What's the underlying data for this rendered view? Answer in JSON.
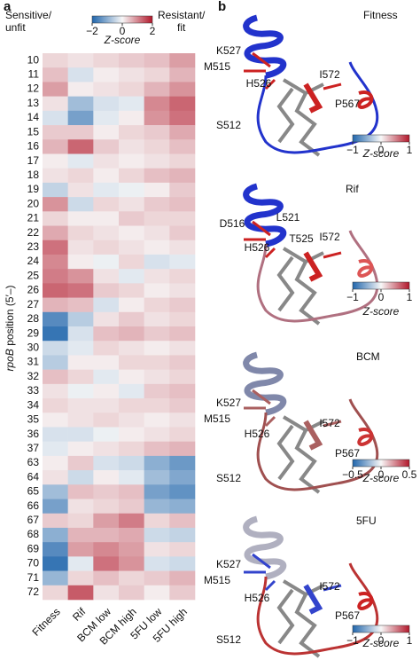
{
  "panel_a": {
    "label": "a",
    "legend": {
      "low": [
        "Sensitive/",
        "unfit"
      ],
      "high": [
        "Resistant/",
        "fit"
      ],
      "title": "Z-score",
      "lim": [
        -2,
        2
      ],
      "ticks": [
        {
          "value": -2,
          "label": "−2"
        },
        0,
        2
      ]
    },
    "y_label": [
      "rpoB",
      " position (5′–)"
    ],
    "chart_data": {
      "type": "heatmap",
      "rows": [
        "10",
        "11",
        "12",
        "13",
        "14",
        "15",
        "16",
        "17",
        "18",
        "19",
        "20",
        "21",
        "22",
        "23",
        "24",
        "25",
        "26",
        "27",
        "28",
        "29",
        "30",
        "31",
        "32",
        "33",
        "34",
        "35",
        "36",
        "37",
        "63",
        "64",
        "65",
        "66",
        "67",
        "68",
        "69",
        "70",
        "71",
        "72"
      ],
      "series": [
        {
          "name": "Fitness",
          "values": [
            0.3,
            0.5,
            0.8,
            0.2,
            -0.3,
            0.4,
            0.6,
            0.1,
            0.2,
            -0.5,
            0.9,
            0.3,
            0.7,
            1.2,
            1.0,
            1.1,
            1.3,
            0.6,
            -1.5,
            -1.8,
            -0.4,
            -0.6,
            0.5,
            0.2,
            0.3,
            0.1,
            -0.3,
            -0.2,
            0.1,
            0.2,
            -0.8,
            -1.2,
            0.4,
            -1.0,
            -1.5,
            -1.8,
            -0.9,
            0.3
          ]
        },
        {
          "name": "Rif",
          "values": [
            0.2,
            -0.3,
            0.1,
            -0.8,
            -1.2,
            0.4,
            1.3,
            -0.2,
            0.3,
            0.2,
            -0.4,
            0.1,
            0.3,
            0.2,
            0.1,
            0.9,
            1.2,
            0.5,
            -0.6,
            -0.3,
            -0.2,
            0.1,
            0.3,
            -0.1,
            0.2,
            0.2,
            -0.3,
            0.1,
            0.4,
            -0.4,
            0.5,
            0.2,
            0.3,
            0.6,
            0.8,
            -0.2,
            0.3,
            1.4
          ]
        },
        {
          "name": "BCM low",
          "values": [
            0.3,
            0.1,
            0.2,
            -0.3,
            -0.2,
            0.1,
            0.4,
            0.2,
            0.1,
            -0.2,
            0.3,
            0.1,
            0.2,
            0.3,
            -0.1,
            0.2,
            0.4,
            -0.3,
            0.2,
            0.5,
            0.3,
            0.1,
            -0.2,
            0.1,
            0.2,
            0.3,
            -0.1,
            0.2,
            -0.3,
            0.1,
            0.4,
            0.3,
            0.8,
            0.6,
            1.0,
            1.2,
            0.5,
            0.2
          ]
        },
        {
          "name": "BCM high",
          "values": [
            0.4,
            0.2,
            0.3,
            -0.2,
            0.1,
            0.3,
            0.2,
            0.1,
            0.3,
            -0.1,
            0.2,
            0.4,
            0.1,
            0.2,
            0.3,
            -0.2,
            0.3,
            0.1,
            0.4,
            0.6,
            0.2,
            0.3,
            0.1,
            -0.2,
            0.3,
            0.2,
            0.1,
            0.3,
            -0.4,
            -0.2,
            0.5,
            0.4,
            1.1,
            0.7,
            0.8,
            0.9,
            0.3,
            0.4
          ]
        },
        {
          "name": "5FU low",
          "values": [
            0.5,
            0.3,
            0.6,
            1.0,
            0.9,
            0.4,
            0.3,
            0.2,
            0.5,
            0.1,
            0.4,
            0.3,
            0.2,
            0.1,
            -0.3,
            0.2,
            0.1,
            0.3,
            0.2,
            0.4,
            0.1,
            0.3,
            0.2,
            0.4,
            0.3,
            0.1,
            0.2,
            0.5,
            -1.0,
            -0.8,
            -1.2,
            -0.9,
            0.3,
            -0.4,
            0.2,
            -0.3,
            0.4,
            0.1
          ]
        },
        {
          "name": "5FU high",
          "values": [
            0.8,
            0.6,
            0.9,
            1.3,
            1.2,
            0.7,
            0.5,
            0.3,
            0.6,
            0.4,
            0.5,
            0.3,
            0.4,
            0.2,
            -0.2,
            0.3,
            0.2,
            0.4,
            0.3,
            0.5,
            0.2,
            0.4,
            0.3,
            0.5,
            0.4,
            0.2,
            0.3,
            0.6,
            -1.3,
            -1.1,
            -1.4,
            -1.0,
            0.5,
            -0.5,
            0.3,
            -0.4,
            0.6,
            0.4
          ]
        }
      ]
    }
  },
  "panel_b": {
    "label": "b",
    "structures": [
      {
        "title": "Fitness",
        "residues": [
          "K527",
          "M515",
          "H526",
          "I572",
          "P567",
          "S512"
        ],
        "colorbar": {
          "title": "Z-score",
          "lim": [
            -1,
            1
          ],
          "ticks": [
            {
              "value": -1,
              "label": "−1"
            },
            0,
            1
          ]
        }
      },
      {
        "title": "Rif",
        "residues": [
          "L521",
          "D516",
          "T525",
          "H526",
          "I572"
        ],
        "colorbar": {
          "title": "Z-score",
          "lim": [
            -1,
            1
          ],
          "ticks": [
            {
              "value": -1,
              "label": "−1"
            },
            0,
            1
          ]
        }
      },
      {
        "title": "BCM",
        "residues": [
          "K527",
          "M515",
          "H526",
          "I572",
          "P567",
          "S512"
        ],
        "colorbar": {
          "title": "Z-score",
          "lim": [
            -0.5,
            0.5
          ],
          "ticks": [
            {
              "value": -0.5,
              "label": "−0.5"
            },
            0,
            0.5
          ]
        }
      },
      {
        "title": "5FU",
        "residues": [
          "K527",
          "M515",
          "H526",
          "I572",
          "P567",
          "S512"
        ],
        "colorbar": {
          "title": "Z-score",
          "lim": [
            -1,
            1
          ],
          "ticks": [
            {
              "value": -1,
              "label": "−1"
            },
            0,
            1
          ]
        }
      }
    ]
  }
}
